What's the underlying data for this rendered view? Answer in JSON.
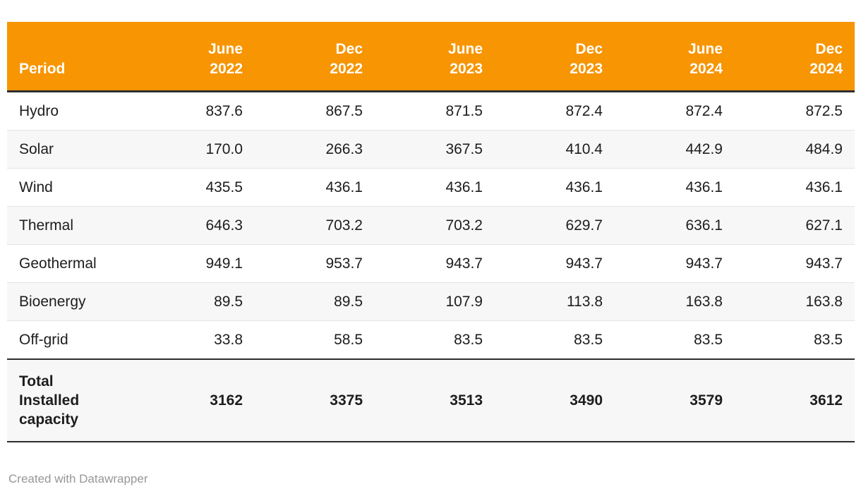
{
  "colors": {
    "header_bg": "#F79502",
    "header_text": "#FFFFFF",
    "dark_border": "#2E2E2E",
    "zebra_row": "#F7F7F7",
    "row_divider": "#E4E4E4",
    "body_text": "#1D1D1D",
    "footer_text": "#979797"
  },
  "table": {
    "period_label": "Period",
    "columns": [
      {
        "month": "June",
        "year": "2022"
      },
      {
        "month": "Dec",
        "year": "2022"
      },
      {
        "month": "June",
        "year": "2023"
      },
      {
        "month": "Dec",
        "year": "2023"
      },
      {
        "month": "June",
        "year": "2024"
      },
      {
        "month": "Dec",
        "year": "2024"
      }
    ],
    "rows": [
      {
        "label": "Hydro",
        "values": [
          "837.6",
          "867.5",
          "871.5",
          "872.4",
          "872.4",
          "872.5"
        ]
      },
      {
        "label": "Solar",
        "values": [
          "170.0",
          "266.3",
          "367.5",
          "410.4",
          "442.9",
          "484.9"
        ]
      },
      {
        "label": "Wind",
        "values": [
          "435.5",
          "436.1",
          "436.1",
          "436.1",
          "436.1",
          "436.1"
        ]
      },
      {
        "label": "Thermal",
        "values": [
          "646.3",
          "703.2",
          "703.2",
          "629.7",
          "636.1",
          "627.1"
        ]
      },
      {
        "label": "Geothermal",
        "values": [
          "949.1",
          "953.7",
          "943.7",
          "943.7",
          "943.7",
          "943.7"
        ]
      },
      {
        "label": "Bioenergy",
        "values": [
          "89.5",
          "89.5",
          "107.9",
          "113.8",
          "163.8",
          "163.8"
        ]
      },
      {
        "label": "Off-grid",
        "values": [
          "33.8",
          "58.5",
          "83.5",
          "83.5",
          "83.5",
          "83.5"
        ]
      }
    ],
    "total_row": {
      "label": "Total Installed capacity",
      "values": [
        "3162",
        "3375",
        "3513",
        "3490",
        "3579",
        "3612"
      ]
    }
  },
  "footer": {
    "attribution": "Created with Datawrapper"
  },
  "chart_data": {
    "type": "table",
    "title": "",
    "categories": [
      "June 2022",
      "Dec 2022",
      "June 2023",
      "Dec 2023",
      "June 2024",
      "Dec 2024"
    ],
    "series": [
      {
        "name": "Hydro",
        "values": [
          837.6,
          867.5,
          871.5,
          872.4,
          872.4,
          872.5
        ]
      },
      {
        "name": "Solar",
        "values": [
          170.0,
          266.3,
          367.5,
          410.4,
          442.9,
          484.9
        ]
      },
      {
        "name": "Wind",
        "values": [
          435.5,
          436.1,
          436.1,
          436.1,
          436.1,
          436.1
        ]
      },
      {
        "name": "Thermal",
        "values": [
          646.3,
          703.2,
          703.2,
          629.7,
          636.1,
          627.1
        ]
      },
      {
        "name": "Geothermal",
        "values": [
          949.1,
          953.7,
          943.7,
          943.7,
          943.7,
          943.7
        ]
      },
      {
        "name": "Bioenergy",
        "values": [
          89.5,
          89.5,
          107.9,
          113.8,
          163.8,
          163.8
        ]
      },
      {
        "name": "Off-grid",
        "values": [
          33.8,
          58.5,
          83.5,
          83.5,
          83.5,
          83.5
        ]
      },
      {
        "name": "Total Installed capacity",
        "values": [
          3162,
          3375,
          3513,
          3490,
          3579,
          3612
        ]
      }
    ],
    "layout_hints": {
      "header_align": "right",
      "first_column_align": "left",
      "zebra_striping": true,
      "legend_position": "none",
      "grid": "row-dividers"
    }
  }
}
